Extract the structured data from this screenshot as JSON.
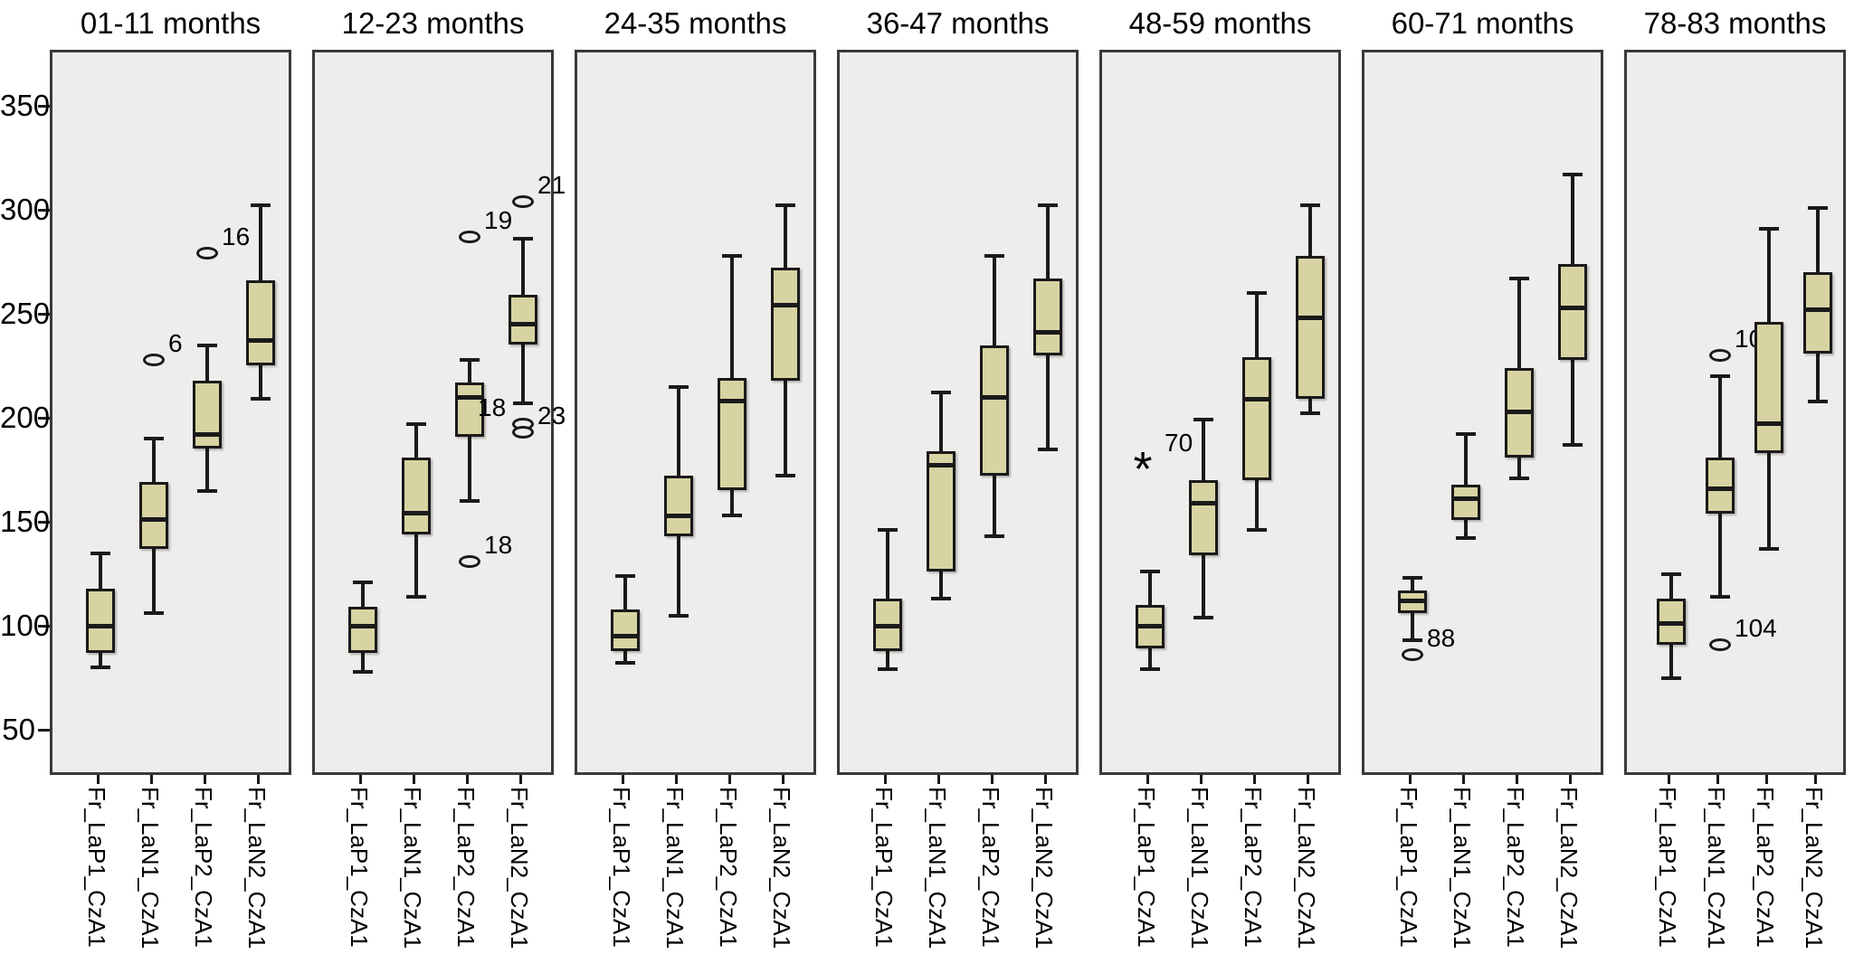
{
  "colors": {
    "page_bg": "#ffffff",
    "panel_bg": "#eeedeb",
    "panel_border": "#3a3a3a",
    "box_fill": "#d8d3a2",
    "line": "#1a1a1a",
    "text": "#000000"
  },
  "chart_data": {
    "type": "boxplot",
    "title": "",
    "xlabel": "",
    "ylabel": "",
    "grid": false,
    "legend": "none",
    "y_axis": {
      "ticks": [
        350,
        300,
        250,
        200,
        150,
        100,
        50
      ],
      "visible_range": [
        28,
        377
      ]
    },
    "categories": [
      "Fr_LaP1_CzA1",
      "Fr_LaN1_CzA1",
      "Fr_LaP2_CzA1",
      "Fr_LaN2_CzA1"
    ],
    "panels": [
      {
        "title": "01-11 months",
        "boxes": [
          {
            "category": "Fr_LaP1_CzA1",
            "whisker_low": 80,
            "q1": 87,
            "median": 100,
            "q3": 118,
            "whisker_high": 135,
            "outliers": []
          },
          {
            "category": "Fr_LaN1_CzA1",
            "whisker_low": 106,
            "q1": 137,
            "median": 151,
            "q3": 169,
            "whisker_high": 190,
            "outliers": [
              {
                "value": 228,
                "label": "6",
                "shape": "circle",
                "label_side": "right"
              }
            ]
          },
          {
            "category": "Fr_LaP2_CzA1",
            "whisker_low": 165,
            "q1": 185,
            "median": 192,
            "q3": 218,
            "whisker_high": 235,
            "outliers": [
              {
                "value": 279,
                "label": "16",
                "shape": "circle",
                "label_side": "right"
              }
            ]
          },
          {
            "category": "Fr_LaN2_CzA1",
            "whisker_low": 209,
            "q1": 225,
            "median": 237,
            "q3": 266,
            "whisker_high": 302,
            "outliers": []
          }
        ]
      },
      {
        "title": "12-23 months",
        "boxes": [
          {
            "category": "Fr_LaP1_CzA1",
            "whisker_low": 78,
            "q1": 87,
            "median": 100,
            "q3": 109,
            "whisker_high": 121,
            "outliers": []
          },
          {
            "category": "Fr_LaN1_CzA1",
            "whisker_low": 114,
            "q1": 144,
            "median": 154,
            "q3": 181,
            "whisker_high": 197,
            "outliers": []
          },
          {
            "category": "Fr_LaP2_CzA1",
            "whisker_low": 160,
            "q1": 191,
            "median": 210,
            "q3": 217,
            "whisker_high": 228,
            "outliers": [
              {
                "value": 287,
                "label": "19",
                "shape": "circle",
                "label_side": "right"
              },
              {
                "value": 131,
                "label": "18",
                "shape": "circle",
                "label_side": "right"
              }
            ]
          },
          {
            "category": "Fr_LaN2_CzA1",
            "whisker_low": 207,
            "q1": 235,
            "median": 245,
            "q3": 259,
            "whisker_high": 286,
            "outliers": [
              {
                "value": 304,
                "label": "21",
                "shape": "circle",
                "label_side": "right"
              },
              {
                "value": 197,
                "label": "18",
                "shape": "circle",
                "label_side": "left"
              },
              {
                "value": 193,
                "label": "23",
                "shape": "circle",
                "label_side": "right"
              }
            ]
          }
        ]
      },
      {
        "title": "24-35 months",
        "boxes": [
          {
            "category": "Fr_LaP1_CzA1",
            "whisker_low": 82,
            "q1": 88,
            "median": 95,
            "q3": 108,
            "whisker_high": 124,
            "outliers": []
          },
          {
            "category": "Fr_LaN1_CzA1",
            "whisker_low": 105,
            "q1": 143,
            "median": 153,
            "q3": 172,
            "whisker_high": 215,
            "outliers": []
          },
          {
            "category": "Fr_LaP2_CzA1",
            "whisker_low": 153,
            "q1": 165,
            "median": 208,
            "q3": 219,
            "whisker_high": 278,
            "outliers": []
          },
          {
            "category": "Fr_LaN2_CzA1",
            "whisker_low": 172,
            "q1": 218,
            "median": 254,
            "q3": 272,
            "whisker_high": 302,
            "outliers": []
          }
        ]
      },
      {
        "title": "36-47 months",
        "boxes": [
          {
            "category": "Fr_LaP1_CzA1",
            "whisker_low": 79,
            "q1": 88,
            "median": 100,
            "q3": 113,
            "whisker_high": 146,
            "outliers": []
          },
          {
            "category": "Fr_LaN1_CzA1",
            "whisker_low": 113,
            "q1": 126,
            "median": 177,
            "q3": 184,
            "whisker_high": 212,
            "outliers": []
          },
          {
            "category": "Fr_LaP2_CzA1",
            "whisker_low": 143,
            "q1": 172,
            "median": 210,
            "q3": 235,
            "whisker_high": 278,
            "outliers": []
          },
          {
            "category": "Fr_LaN2_CzA1",
            "whisker_low": 185,
            "q1": 230,
            "median": 241,
            "q3": 267,
            "whisker_high": 302,
            "outliers": []
          }
        ]
      },
      {
        "title": "48-59 months",
        "boxes": [
          {
            "category": "Fr_LaP1_CzA1",
            "whisker_low": 79,
            "q1": 89,
            "median": 100,
            "q3": 110,
            "whisker_high": 126,
            "outliers": [
              {
                "value": 180,
                "label": "70",
                "shape": "star",
                "label_side": "right"
              }
            ]
          },
          {
            "category": "Fr_LaN1_CzA1",
            "whisker_low": 104,
            "q1": 134,
            "median": 159,
            "q3": 170,
            "whisker_high": 199,
            "outliers": []
          },
          {
            "category": "Fr_LaP2_CzA1",
            "whisker_low": 146,
            "q1": 170,
            "median": 209,
            "q3": 229,
            "whisker_high": 260,
            "outliers": []
          },
          {
            "category": "Fr_LaN2_CzA1",
            "whisker_low": 202,
            "q1": 209,
            "median": 248,
            "q3": 278,
            "whisker_high": 302,
            "outliers": []
          }
        ]
      },
      {
        "title": "60-71 months",
        "boxes": [
          {
            "category": "Fr_LaP1_CzA1",
            "whisker_low": 93,
            "q1": 106,
            "median": 112,
            "q3": 117,
            "whisker_high": 123,
            "outliers": [
              {
                "value": 86,
                "label": "88",
                "shape": "circle",
                "label_side": "right"
              }
            ]
          },
          {
            "category": "Fr_LaN1_CzA1",
            "whisker_low": 142,
            "q1": 151,
            "median": 161,
            "q3": 168,
            "whisker_high": 192,
            "outliers": []
          },
          {
            "category": "Fr_LaP2_CzA1",
            "whisker_low": 171,
            "q1": 181,
            "median": 203,
            "q3": 224,
            "whisker_high": 267,
            "outliers": []
          },
          {
            "category": "Fr_LaN2_CzA1",
            "whisker_low": 187,
            "q1": 228,
            "median": 253,
            "q3": 274,
            "whisker_high": 317,
            "outliers": []
          }
        ]
      },
      {
        "title": "78-83 months",
        "boxes": [
          {
            "category": "Fr_LaP1_CzA1",
            "whisker_low": 75,
            "q1": 91,
            "median": 101,
            "q3": 113,
            "whisker_high": 125,
            "outliers": []
          },
          {
            "category": "Fr_LaN1_CzA1",
            "whisker_low": 114,
            "q1": 154,
            "median": 166,
            "q3": 181,
            "whisker_high": 220,
            "outliers": [
              {
                "value": 230,
                "label": "102",
                "shape": "circle",
                "label_side": "right"
              },
              {
                "value": 91,
                "label": "104",
                "shape": "circle",
                "label_side": "right"
              }
            ]
          },
          {
            "category": "Fr_LaP2_CzA1",
            "whisker_low": 137,
            "q1": 183,
            "median": 197,
            "q3": 246,
            "whisker_high": 291,
            "outliers": []
          },
          {
            "category": "Fr_LaN2_CzA1",
            "whisker_low": 208,
            "q1": 231,
            "median": 252,
            "q3": 270,
            "whisker_high": 301,
            "outliers": []
          }
        ]
      }
    ]
  }
}
